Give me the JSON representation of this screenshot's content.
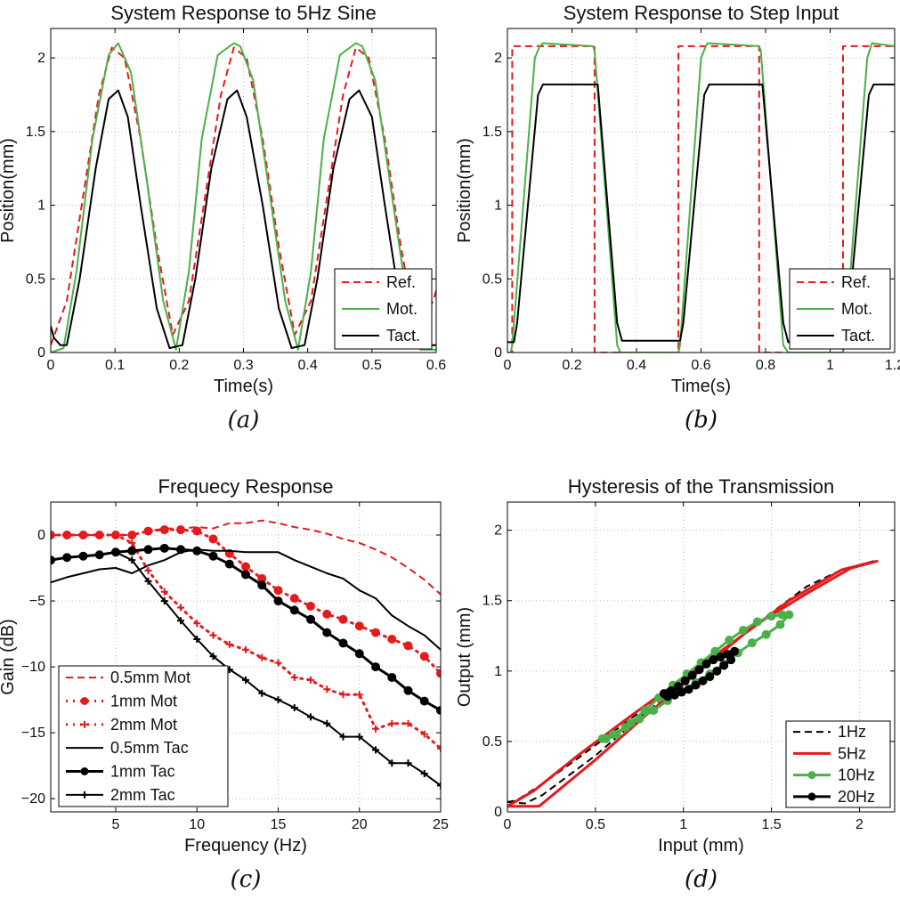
{
  "chart_data": [
    {
      "id": "a",
      "type": "line",
      "title": "System Response to 5Hz Sine",
      "xlabel": "Time(s)",
      "ylabel": "Position(mm)",
      "caption": "(a)",
      "xlim": [
        0,
        0.6
      ],
      "ylim": [
        0,
        2.2
      ],
      "xticks": [
        0,
        0.1,
        0.2,
        0.3,
        0.4,
        0.5,
        0.6
      ],
      "yticks": [
        0,
        0.5,
        1,
        1.5,
        2
      ],
      "xtick_labels": [
        "0",
        "0.1",
        "0.2",
        "0.3",
        "0.4",
        "0.5",
        "0.6"
      ],
      "ytick_labels": [
        "0",
        "0.5",
        "1",
        "1.5",
        "2"
      ],
      "legend_position": "bottom-right",
      "series": [
        {
          "name": "Ref.",
          "color": "#e41a1c",
          "dash": "dashed",
          "x": [
            0,
            0.025,
            0.05,
            0.075,
            0.095,
            0.115,
            0.14,
            0.165,
            0.19,
            0.215,
            0.24,
            0.265,
            0.285,
            0.305,
            0.33,
            0.355,
            0.38,
            0.405,
            0.43,
            0.455,
            0.475,
            0.495,
            0.52,
            0.545,
            0.57,
            0.595,
            0.6
          ],
          "y": [
            0.05,
            0.35,
            1.05,
            1.75,
            2.07,
            2.0,
            1.45,
            0.72,
            0.12,
            0.35,
            1.05,
            1.75,
            2.07,
            2.0,
            1.45,
            0.72,
            0.12,
            0.35,
            1.05,
            1.75,
            2.07,
            2.0,
            1.45,
            0.72,
            0.12,
            0.35,
            0.42
          ]
        },
        {
          "name": "Mot.",
          "color": "#4daf4a",
          "dash": "solid",
          "x": [
            0,
            0.02,
            0.04,
            0.065,
            0.09,
            0.105,
            0.125,
            0.15,
            0.175,
            0.195,
            0.215,
            0.235,
            0.26,
            0.285,
            0.295,
            0.315,
            0.34,
            0.365,
            0.385,
            0.405,
            0.425,
            0.45,
            0.475,
            0.485,
            0.505,
            0.53,
            0.555,
            0.575,
            0.6
          ],
          "y": [
            0.0,
            0.03,
            0.55,
            1.45,
            2.02,
            2.1,
            1.9,
            1.15,
            0.35,
            0.02,
            0.55,
            1.45,
            2.02,
            2.1,
            2.08,
            1.85,
            1.1,
            0.35,
            0.02,
            0.55,
            1.45,
            2.02,
            2.1,
            2.08,
            1.85,
            1.1,
            0.35,
            0.02,
            0.02
          ]
        },
        {
          "name": "Tact.",
          "color": "#000000",
          "dash": "solid",
          "x": [
            0,
            0.005,
            0.015,
            0.025,
            0.045,
            0.07,
            0.09,
            0.105,
            0.12,
            0.14,
            0.165,
            0.185,
            0.205,
            0.225,
            0.25,
            0.275,
            0.29,
            0.305,
            0.33,
            0.355,
            0.375,
            0.395,
            0.415,
            0.44,
            0.465,
            0.48,
            0.5,
            0.52,
            0.545,
            0.565,
            0.58,
            0.6
          ],
          "y": [
            0.18,
            0.1,
            0.05,
            0.05,
            0.5,
            1.25,
            1.72,
            1.78,
            1.6,
            1.0,
            0.3,
            0.03,
            0.05,
            0.5,
            1.25,
            1.72,
            1.78,
            1.6,
            1.0,
            0.3,
            0.03,
            0.05,
            0.5,
            1.25,
            1.72,
            1.78,
            1.6,
            1.0,
            0.3,
            0.03,
            0.05,
            0.05
          ]
        }
      ]
    },
    {
      "id": "b",
      "type": "line",
      "title": "System Response to Step Input",
      "xlabel": "Time(s)",
      "ylabel": "Position(mm)",
      "caption": "(b)",
      "xlim": [
        0,
        1.2
      ],
      "ylim": [
        0,
        2.2
      ],
      "xticks": [
        0,
        0.2,
        0.4,
        0.6,
        0.8,
        1,
        1.2
      ],
      "yticks": [
        0,
        0.5,
        1,
        1.5,
        2
      ],
      "xtick_labels": [
        "0",
        "0.2",
        "0.4",
        "0.6",
        "0.8",
        "1",
        "1.2"
      ],
      "ytick_labels": [
        "0",
        "0.5",
        "1",
        "1.5",
        "2"
      ],
      "legend_position": "bottom-right",
      "series": [
        {
          "name": "Ref.",
          "color": "#e41a1c",
          "dash": "dashed",
          "x": [
            0,
            0.015,
            0.015,
            0.27,
            0.27,
            0.53,
            0.53,
            0.78,
            0.78,
            1.04,
            1.04,
            1.2
          ],
          "y": [
            0,
            0,
            2.08,
            2.08,
            0,
            0,
            2.08,
            2.08,
            0,
            0,
            2.08,
            2.08
          ]
        },
        {
          "name": "Mot.",
          "color": "#4daf4a",
          "dash": "solid",
          "x": [
            0,
            0.01,
            0.015,
            0.085,
            0.1,
            0.11,
            0.265,
            0.27,
            0.34,
            0.35,
            0.53,
            0.535,
            0.6,
            0.615,
            0.62,
            0.78,
            0.785,
            0.855,
            0.87,
            1.04,
            1.045,
            1.115,
            1.13,
            1.2
          ],
          "y": [
            0,
            0,
            0.05,
            2.0,
            2.08,
            2.1,
            2.08,
            2.05,
            0.05,
            0.0,
            0.0,
            0.05,
            2.0,
            2.08,
            2.1,
            2.08,
            2.05,
            0.05,
            0.0,
            0.0,
            0.05,
            2.0,
            2.1,
            2.08
          ]
        },
        {
          "name": "Tact.",
          "color": "#000000",
          "dash": "solid",
          "x": [
            0,
            0.02,
            0.03,
            0.095,
            0.11,
            0.28,
            0.34,
            0.355,
            0.535,
            0.545,
            0.61,
            0.625,
            0.79,
            0.855,
            0.87,
            1.045,
            1.055,
            1.12,
            1.135,
            1.2
          ],
          "y": [
            0.07,
            0.07,
            0.2,
            1.75,
            1.82,
            1.82,
            0.2,
            0.08,
            0.08,
            0.2,
            1.75,
            1.82,
            1.82,
            0.2,
            0.07,
            0.07,
            0.2,
            1.75,
            1.82,
            1.82
          ]
        }
      ]
    },
    {
      "id": "c",
      "type": "line",
      "title": "Frequecy Response",
      "xlabel": "Frequency (Hz)",
      "ylabel": "Gain (dB)",
      "caption": "(c)",
      "xlim": [
        1,
        25
      ],
      "ylim": [
        -21,
        2.5
      ],
      "xticks": [
        5,
        10,
        15,
        20,
        25
      ],
      "yticks": [
        0,
        -5,
        -10,
        -15,
        -20
      ],
      "xtick_labels": [
        "5",
        "10",
        "15",
        "20",
        "25"
      ],
      "ytick_labels": [
        "0",
        "−5",
        "−10",
        "−15",
        "−20"
      ],
      "legend_position": "bottom-left",
      "series": [
        {
          "name": "0.5mm Mot",
          "color": "#e41a1c",
          "dash": "dashed",
          "marker": "none",
          "width": 2,
          "x": [
            1,
            2,
            3,
            4,
            5,
            6,
            7,
            8,
            9,
            10,
            11,
            12,
            13,
            14,
            15,
            16,
            17,
            18,
            19,
            20,
            21,
            22,
            23,
            24,
            25
          ],
          "y": [
            0,
            0,
            0,
            0,
            0,
            0,
            0.3,
            0.5,
            0.5,
            0.6,
            0.5,
            0.9,
            0.9,
            1.1,
            0.9,
            0.6,
            0.4,
            0.1,
            -0.3,
            -0.6,
            -1.1,
            -1.7,
            -2.5,
            -3.4,
            -4.5
          ]
        },
        {
          "name": "1mm Mot",
          "color": "#e41a1c",
          "dash": "dotted",
          "marker": "circle",
          "width": 3,
          "x": [
            1,
            2,
            3,
            4,
            5,
            6,
            7,
            8,
            9,
            10,
            11,
            12,
            13,
            14,
            15,
            16,
            17,
            18,
            19,
            20,
            21,
            22,
            23,
            24,
            25
          ],
          "y": [
            0,
            0,
            0,
            0,
            0,
            0,
            0.3,
            0.4,
            0.4,
            0.3,
            -0.3,
            -1.4,
            -2.4,
            -3.3,
            -4.2,
            -4.8,
            -5.4,
            -6.0,
            -6.4,
            -6.9,
            -7.4,
            -7.9,
            -8.4,
            -9.2,
            -10.5
          ]
        },
        {
          "name": "2mm Mot",
          "color": "#e41a1c",
          "dash": "dotted",
          "marker": "plus",
          "width": 3,
          "x": [
            1,
            2,
            3,
            4,
            5,
            6,
            7,
            8,
            9,
            10,
            11,
            12,
            13,
            14,
            15,
            16,
            17,
            18,
            19,
            20,
            21,
            22,
            23,
            24,
            25
          ],
          "y": [
            0,
            0,
            0,
            0,
            0,
            -0.6,
            -2.7,
            -4.3,
            -5.5,
            -6.7,
            -7.6,
            -8.3,
            -8.7,
            -9.3,
            -9.7,
            -10.8,
            -11.0,
            -11.7,
            -12.1,
            -12.1,
            -14.7,
            -14.3,
            -14.3,
            -15.1,
            -16.2
          ]
        },
        {
          "name": "0.5mm Tac",
          "color": "#000000",
          "dash": "solid",
          "marker": "none",
          "width": 2,
          "x": [
            1,
            2,
            3,
            4,
            5,
            6,
            7,
            8,
            9,
            10,
            11,
            12,
            13,
            14,
            15,
            16,
            17,
            18,
            19,
            20,
            21,
            22,
            23,
            24,
            25
          ],
          "y": [
            -3.6,
            -3.2,
            -2.9,
            -2.6,
            -2.5,
            -2.9,
            -2.3,
            -1.9,
            -1.3,
            -1.1,
            -1.2,
            -1.2,
            -1.3,
            -1.3,
            -1.3,
            -1.9,
            -2.4,
            -2.9,
            -3.3,
            -4.2,
            -4.8,
            -6.1,
            -6.9,
            -7.6,
            -8.7
          ]
        },
        {
          "name": "1mm Tac",
          "color": "#000000",
          "dash": "solid",
          "marker": "circle",
          "width": 3,
          "x": [
            1,
            2,
            3,
            4,
            5,
            6,
            7,
            8,
            9,
            10,
            11,
            12,
            13,
            14,
            15,
            16,
            17,
            18,
            19,
            20,
            21,
            22,
            23,
            24,
            25
          ],
          "y": [
            -1.9,
            -1.7,
            -1.6,
            -1.5,
            -1.3,
            -1.2,
            -1.1,
            -1.0,
            -1.1,
            -1.2,
            -1.6,
            -2.2,
            -3.0,
            -3.8,
            -5.0,
            -5.7,
            -6.4,
            -7.4,
            -8.2,
            -9.0,
            -10.0,
            -10.8,
            -11.8,
            -12.6,
            -13.3
          ]
        },
        {
          "name": "2mm Tac",
          "color": "#000000",
          "dash": "solid",
          "marker": "plus",
          "width": 2,
          "x": [
            1,
            2,
            3,
            4,
            5,
            6,
            7,
            8,
            9,
            10,
            11,
            12,
            13,
            14,
            15,
            16,
            17,
            18,
            19,
            20,
            21,
            22,
            23,
            24,
            25
          ],
          "y": [
            -1.9,
            -1.7,
            -1.6,
            -1.5,
            -1.3,
            -1.9,
            -3.5,
            -5.0,
            -6.5,
            -7.9,
            -9.2,
            -10.2,
            -11.0,
            -12.0,
            -12.5,
            -13.1,
            -13.8,
            -14.3,
            -15.3,
            -15.3,
            -16.3,
            -17.3,
            -17.3,
            -18.1,
            -19.0
          ]
        }
      ]
    },
    {
      "id": "d",
      "type": "line",
      "title": "Hysteresis of the Transmission",
      "xlabel": "Input (mm)",
      "ylabel": "Output (mm)",
      "caption": "(d)",
      "xlim": [
        0,
        2.2
      ],
      "ylim": [
        0,
        2.2
      ],
      "xticks": [
        0,
        0.5,
        1,
        1.5,
        2
      ],
      "yticks": [
        0,
        0.5,
        1,
        1.5,
        2
      ],
      "xtick_labels": [
        "0",
        "0.5",
        "1",
        "1.5",
        "2"
      ],
      "ytick_labels": [
        "0",
        "0.5",
        "1",
        "1.5",
        "2"
      ],
      "legend_position": "bottom-right",
      "series": [
        {
          "name": "1Hz",
          "color": "#000000",
          "dash": "dashed",
          "marker": "none",
          "width": 2,
          "x": [
            0.0,
            0.1,
            0.2,
            0.5,
            0.8,
            1.1,
            1.4,
            1.7,
            1.9,
            2.08,
            1.9,
            1.6,
            1.3,
            1.0,
            0.7,
            0.4,
            0.2,
            0.05,
            0.0
          ],
          "y": [
            0.07,
            0.06,
            0.12,
            0.4,
            0.72,
            1.02,
            1.32,
            1.6,
            1.72,
            1.78,
            1.72,
            1.5,
            1.22,
            0.95,
            0.66,
            0.38,
            0.2,
            0.08,
            0.07
          ]
        },
        {
          "name": "5Hz",
          "color": "#e41a1c",
          "dash": "solid",
          "marker": "none",
          "width": 3,
          "x": [
            0.0,
            0.18,
            0.5,
            0.8,
            1.1,
            1.4,
            1.7,
            1.95,
            2.1,
            1.9,
            1.6,
            1.3,
            1.0,
            0.7,
            0.4,
            0.15,
            0.0
          ],
          "y": [
            0.04,
            0.04,
            0.37,
            0.7,
            1.01,
            1.32,
            1.55,
            1.73,
            1.78,
            1.72,
            1.5,
            1.22,
            0.95,
            0.68,
            0.4,
            0.15,
            0.04
          ]
        },
        {
          "name": "10Hz",
          "color": "#4daf4a",
          "dash": "solid",
          "marker": "circle",
          "width": 3,
          "x": [
            0.56,
            0.62,
            0.7,
            0.78,
            0.86,
            0.94,
            1.02,
            1.1,
            1.18,
            1.26,
            1.34,
            1.42,
            1.5,
            1.56,
            1.6,
            1.55,
            1.47,
            1.39,
            1.31,
            1.23,
            1.15,
            1.07,
            0.99,
            0.91,
            0.83,
            0.75,
            0.67,
            0.6,
            0.54,
            0.56
          ],
          "y": [
            0.52,
            0.55,
            0.63,
            0.72,
            0.81,
            0.9,
            0.98,
            1.06,
            1.14,
            1.22,
            1.29,
            1.35,
            1.39,
            1.4,
            1.4,
            1.33,
            1.26,
            1.2,
            1.13,
            1.05,
            0.98,
            0.92,
            0.86,
            0.79,
            0.72,
            0.66,
            0.6,
            0.55,
            0.52,
            0.52
          ]
        },
        {
          "name": "20Hz",
          "color": "#000000",
          "dash": "solid",
          "marker": "circle",
          "width": 3,
          "x": [
            0.89,
            0.93,
            0.97,
            1.01,
            1.05,
            1.09,
            1.13,
            1.17,
            1.21,
            1.25,
            1.29,
            1.27,
            1.23,
            1.19,
            1.15,
            1.11,
            1.07,
            1.03,
            0.99,
            0.95,
            0.91,
            0.89
          ],
          "y": [
            0.84,
            0.86,
            0.89,
            0.93,
            0.97,
            1.01,
            1.05,
            1.08,
            1.1,
            1.12,
            1.14,
            1.08,
            1.04,
            1.0,
            0.96,
            0.93,
            0.9,
            0.87,
            0.85,
            0.83,
            0.82,
            0.84
          ]
        }
      ]
    }
  ]
}
